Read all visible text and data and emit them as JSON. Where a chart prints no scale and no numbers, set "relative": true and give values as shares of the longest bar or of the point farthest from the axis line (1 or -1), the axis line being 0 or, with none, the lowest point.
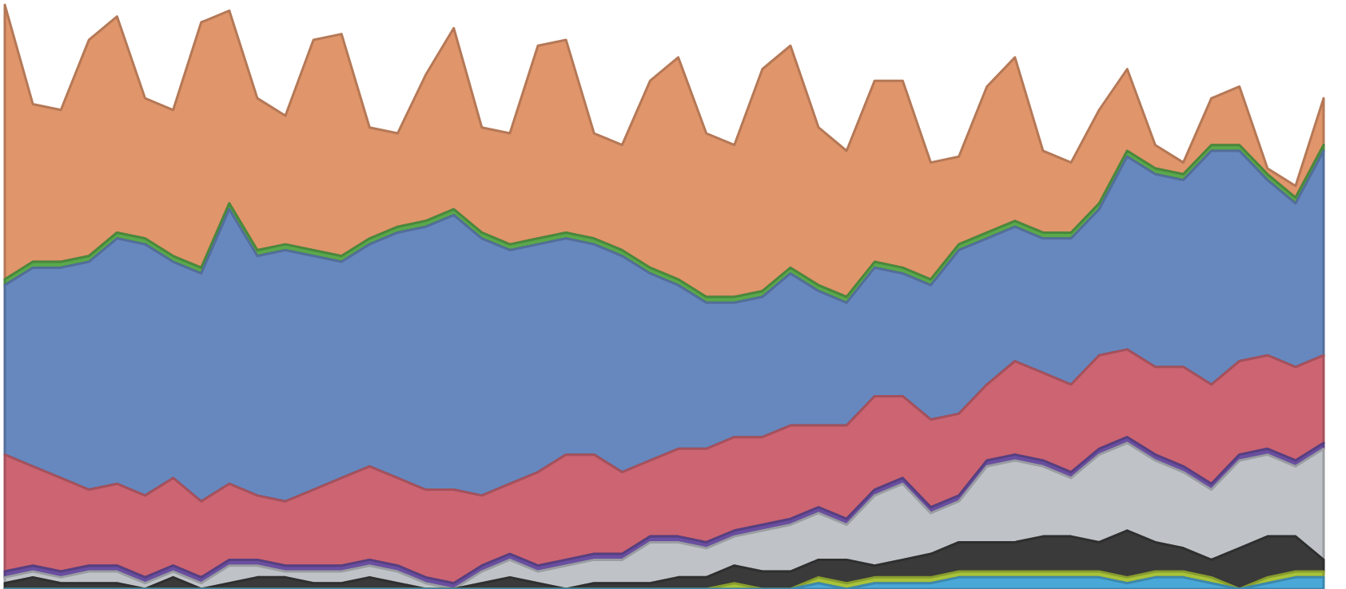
{
  "chart_data": {
    "type": "area",
    "stacked": true,
    "relative": true,
    "categories": [
      null,
      null,
      null,
      null,
      null,
      null,
      null,
      null,
      null,
      null,
      null,
      null,
      null,
      null,
      null,
      null,
      null,
      null,
      null,
      null,
      null,
      null,
      null,
      null,
      null,
      null,
      null,
      null,
      null,
      null,
      null,
      null,
      null,
      null,
      null,
      null,
      null,
      null,
      null,
      null,
      null,
      null,
      null,
      null,
      null,
      null,
      null,
      null
    ],
    "series": [
      {
        "color": "#4aa8d8",
        "values": [
          0,
          0,
          0,
          0,
          0,
          0,
          0,
          0,
          0,
          0,
          0,
          0,
          0,
          0,
          0,
          0,
          0,
          0,
          0,
          0,
          0,
          0,
          0,
          0,
          0,
          0,
          0,
          0,
          0,
          0.01,
          0,
          0.01,
          0.01,
          0.01,
          0.02,
          0.02,
          0.02,
          0.02,
          0.02,
          0.02,
          0.01,
          0.02,
          0.02,
          0.01,
          0,
          0.01,
          0.02,
          0.02
        ]
      },
      {
        "color": "#a8c23a",
        "values": [
          0,
          0,
          0,
          0,
          0,
          0,
          0,
          0,
          0,
          0,
          0,
          0,
          0,
          0,
          0,
          0,
          0,
          0,
          0,
          0,
          0,
          0,
          0,
          0,
          0,
          0,
          0.01,
          0,
          0,
          0.01,
          0.01,
          0.01,
          0.01,
          0.01,
          0.01,
          0.01,
          0.01,
          0.01,
          0.01,
          0.01,
          0.01,
          0.01,
          0.01,
          0.01,
          0,
          0.01,
          0.01,
          0.01
        ]
      },
      {
        "color": "#3a3a3a",
        "values": [
          0.01,
          0.02,
          0.01,
          0.01,
          0.01,
          0,
          0.02,
          0,
          0.01,
          0.02,
          0.02,
          0.01,
          0.01,
          0.02,
          0.01,
          0,
          0,
          0.01,
          0.02,
          0.01,
          0,
          0.01,
          0.01,
          0.01,
          0.02,
          0.02,
          0.03,
          0.03,
          0.03,
          0.03,
          0.04,
          0.02,
          0.03,
          0.04,
          0.05,
          0.05,
          0.05,
          0.06,
          0.06,
          0.05,
          0.08,
          0.05,
          0.04,
          0.03,
          0.07,
          0.07,
          0.06,
          0.02
        ]
      },
      {
        "color": "#bfc3c8",
        "values": [
          0.01,
          0.01,
          0.01,
          0.02,
          0.02,
          0.01,
          0.01,
          0.01,
          0.03,
          0.02,
          0.01,
          0.02,
          0.02,
          0.02,
          0.02,
          0.01,
          0,
          0.02,
          0.03,
          0.02,
          0.04,
          0.04,
          0.04,
          0.07,
          0.06,
          0.05,
          0.05,
          0.07,
          0.08,
          0.08,
          0.06,
          0.12,
          0.13,
          0.07,
          0.07,
          0.13,
          0.14,
          0.12,
          0.1,
          0.15,
          0.15,
          0.14,
          0.13,
          0.12,
          0.15,
          0.14,
          0.12,
          0.19
        ]
      },
      {
        "color": "#6a4ea0",
        "values": [
          0.01,
          0.01,
          0.01,
          0.01,
          0.01,
          0.01,
          0.01,
          0.01,
          0.01,
          0.01,
          0.01,
          0.01,
          0.01,
          0.01,
          0.01,
          0.01,
          0.01,
          0.01,
          0.01,
          0.01,
          0.01,
          0.01,
          0.01,
          0.01,
          0.01,
          0.01,
          0.01,
          0.01,
          0.01,
          0.01,
          0.01,
          0.01,
          0.01,
          0.01,
          0.01,
          0.01,
          0.01,
          0.01,
          0.01,
          0.01,
          0.01,
          0.01,
          0.01,
          0.01,
          0.01,
          0.01,
          0.01,
          0.01
        ]
      },
      {
        "color": "#cc6472",
        "values": [
          0.2,
          0.17,
          0.16,
          0.13,
          0.14,
          0.14,
          0.15,
          0.13,
          0.13,
          0.11,
          0.11,
          0.13,
          0.15,
          0.16,
          0.15,
          0.15,
          0.16,
          0.12,
          0.12,
          0.16,
          0.18,
          0.17,
          0.14,
          0.13,
          0.15,
          0.16,
          0.16,
          0.15,
          0.16,
          0.14,
          0.16,
          0.16,
          0.14,
          0.15,
          0.14,
          0.13,
          0.16,
          0.15,
          0.15,
          0.16,
          0.15,
          0.15,
          0.17,
          0.17,
          0.16,
          0.16,
          0.16,
          0.15
        ]
      },
      {
        "color": "#6788bf",
        "values": [
          0.29,
          0.34,
          0.36,
          0.39,
          0.42,
          0.43,
          0.37,
          0.39,
          0.47,
          0.41,
          0.43,
          0.4,
          0.37,
          0.38,
          0.42,
          0.45,
          0.47,
          0.44,
          0.4,
          0.39,
          0.37,
          0.36,
          0.37,
          0.32,
          0.28,
          0.25,
          0.23,
          0.24,
          0.26,
          0.23,
          0.21,
          0.22,
          0.21,
          0.23,
          0.28,
          0.25,
          0.23,
          0.23,
          0.25,
          0.25,
          0.33,
          0.33,
          0.32,
          0.4,
          0.36,
          0.3,
          0.28,
          0.35
        ]
      },
      {
        "color": "#5aa84b",
        "values": [
          0.01,
          0.01,
          0.01,
          0.01,
          0.01,
          0.01,
          0.01,
          0.01,
          0.01,
          0.01,
          0.01,
          0.01,
          0.01,
          0.01,
          0.01,
          0.01,
          0.01,
          0.01,
          0.01,
          0.01,
          0.01,
          0.01,
          0.01,
          0.01,
          0.01,
          0.01,
          0.01,
          0.01,
          0.01,
          0.01,
          0.01,
          0.01,
          0.01,
          0.01,
          0.01,
          0.01,
          0.01,
          0.01,
          0.01,
          0.01,
          0.01,
          0.01,
          0.01,
          0.01,
          0.01,
          0.01,
          0.01,
          0.01
        ]
      },
      {
        "color": "#e0956a",
        "values": [
          0.47,
          0.27,
          0.26,
          0.37,
          0.37,
          0.24,
          0.25,
          0.42,
          0.33,
          0.26,
          0.22,
          0.36,
          0.38,
          0.19,
          0.16,
          0.25,
          0.31,
          0.18,
          0.19,
          0.33,
          0.33,
          0.18,
          0.18,
          0.32,
          0.38,
          0.28,
          0.26,
          0.38,
          0.38,
          0.27,
          0.25,
          0.31,
          0.32,
          0.2,
          0.15,
          0.25,
          0.28,
          0.14,
          0.12,
          0.16,
          0.14,
          0.04,
          0.02,
          0.08,
          0.1,
          0.01,
          0.02,
          0.08
        ]
      }
    ]
  }
}
